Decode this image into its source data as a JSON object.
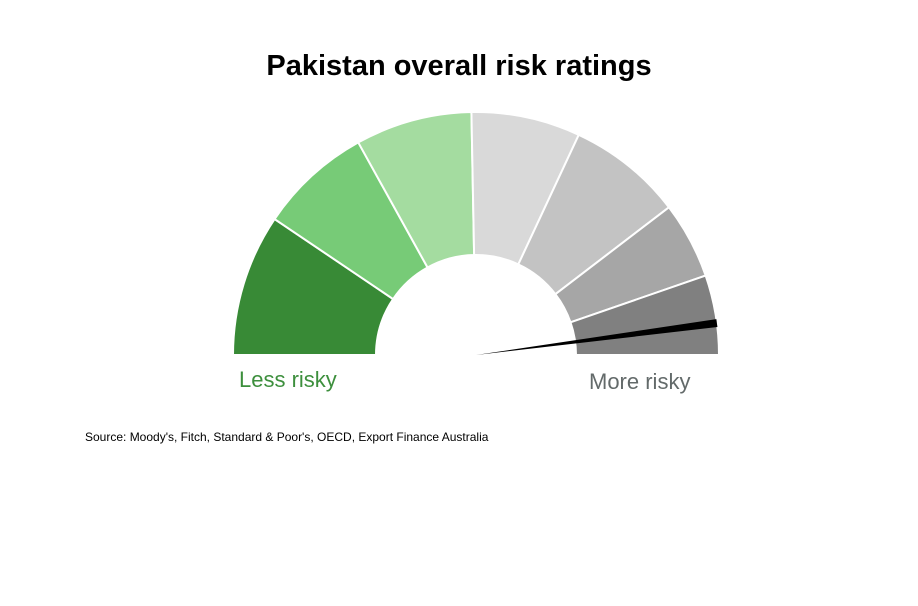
{
  "chart_data": {
    "type": "gauge",
    "title": "Pakistan overall risk ratings",
    "min_label": "Less risky",
    "max_label": "More risky",
    "segments": [
      {
        "start": 0,
        "end": 0.189,
        "color": "#388a36"
      },
      {
        "start": 0.189,
        "end": 0.339,
        "color": "#77cb77"
      },
      {
        "start": 0.339,
        "end": 0.494,
        "color": "#a4dca0"
      },
      {
        "start": 0.494,
        "end": 0.639,
        "color": "#d9d9d9"
      },
      {
        "start": 0.639,
        "end": 0.792,
        "color": "#c3c3c3"
      },
      {
        "start": 0.792,
        "end": 0.894,
        "color": "#a6a6a6"
      },
      {
        "start": 0.894,
        "end": 1,
        "color": "#808080"
      }
    ],
    "needle_value": 0.958,
    "source": "Source: Moody's, Fitch, Standard & Poor's, OECD, Export Finance Australia"
  }
}
